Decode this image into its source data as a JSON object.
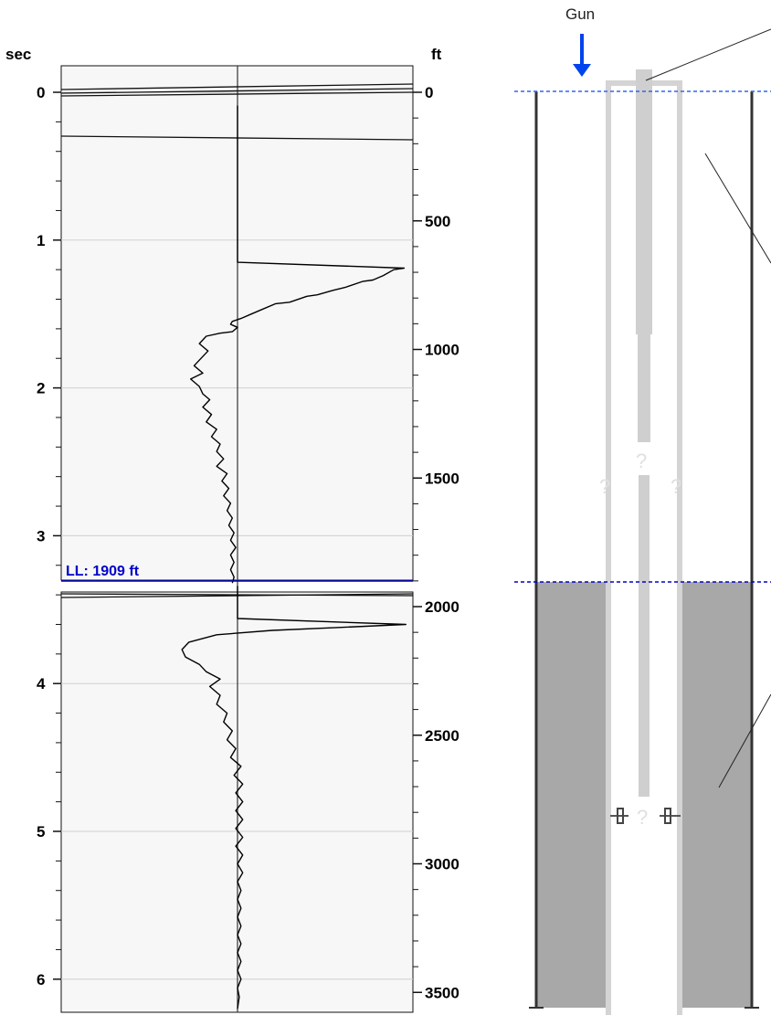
{
  "chart_data": {
    "type": "line",
    "title": "",
    "left_axis": {
      "label": "sec",
      "range": [
        0,
        6.2
      ],
      "ticks": [
        "0",
        "1",
        "2",
        "3",
        "4",
        "5",
        "6"
      ]
    },
    "right_axis": {
      "label": "ft",
      "range": [
        0,
        3600
      ],
      "ticks": [
        "0",
        "500",
        "1000",
        "1500",
        "2000",
        "2500",
        "3000",
        "3500"
      ]
    },
    "grid": true,
    "liquid_level": {
      "label": "LL: 1909 ft",
      "depth_ft": 1909,
      "time_sec": 3.32
    },
    "series": [
      {
        "segment": "upper",
        "points": [
          [
            0.0,
            0.09
          ],
          [
            0.0,
            0.2
          ],
          [
            0.0,
            0.28
          ],
          [
            0.0,
            0.34
          ],
          [
            0.0,
            0.4
          ],
          [
            0.0,
            0.46
          ],
          [
            0.0,
            0.52
          ],
          [
            0.0,
            0.58
          ],
          [
            0.0,
            0.64
          ],
          [
            0.0,
            0.7
          ],
          [
            0.0,
            0.76
          ],
          [
            0.0,
            0.82
          ],
          [
            0.0,
            0.88
          ],
          [
            0.0,
            0.94
          ],
          [
            0.0,
            1.0
          ],
          [
            0.0,
            1.06
          ],
          [
            0.0,
            1.1
          ],
          [
            0.0,
            1.15
          ],
          [
            0.96,
            1.19
          ],
          [
            0.9,
            1.2
          ],
          [
            0.84,
            1.24
          ],
          [
            0.78,
            1.27
          ],
          [
            0.72,
            1.28
          ],
          [
            0.62,
            1.32
          ],
          [
            0.55,
            1.34
          ],
          [
            0.46,
            1.37
          ],
          [
            0.4,
            1.38
          ],
          [
            0.3,
            1.42
          ],
          [
            0.22,
            1.43
          ],
          [
            0.14,
            1.47
          ],
          [
            0.08,
            1.5
          ],
          [
            0.02,
            1.53
          ],
          [
            -0.03,
            1.55
          ],
          [
            -0.04,
            1.57
          ],
          [
            0.0,
            1.59
          ],
          [
            -0.03,
            1.62
          ],
          [
            -0.1,
            1.63
          ],
          [
            -0.18,
            1.65
          ],
          [
            -0.22,
            1.7
          ],
          [
            -0.17,
            1.75
          ],
          [
            -0.21,
            1.8
          ],
          [
            -0.25,
            1.85
          ],
          [
            -0.2,
            1.9
          ],
          [
            -0.27,
            1.94
          ],
          [
            -0.22,
            1.99
          ],
          [
            -0.2,
            2.04
          ],
          [
            -0.16,
            2.08
          ],
          [
            -0.2,
            2.13
          ],
          [
            -0.15,
            2.18
          ],
          [
            -0.18,
            2.23
          ],
          [
            -0.12,
            2.28
          ],
          [
            -0.15,
            2.33
          ],
          [
            -0.1,
            2.38
          ],
          [
            -0.12,
            2.43
          ],
          [
            -0.08,
            2.48
          ],
          [
            -0.12,
            2.53
          ],
          [
            -0.06,
            2.58
          ],
          [
            -0.09,
            2.63
          ],
          [
            -0.05,
            2.68
          ],
          [
            -0.08,
            2.73
          ],
          [
            -0.04,
            2.78
          ],
          [
            -0.06,
            2.83
          ],
          [
            -0.03,
            2.88
          ],
          [
            -0.05,
            2.93
          ],
          [
            -0.02,
            2.98
          ],
          [
            -0.04,
            3.03
          ],
          [
            -0.01,
            3.08
          ],
          [
            -0.04,
            3.13
          ],
          [
            -0.02,
            3.18
          ],
          [
            -0.04,
            3.23
          ],
          [
            -0.02,
            3.28
          ],
          [
            -0.03,
            3.32
          ]
        ]
      },
      {
        "segment": "lower",
        "points": [
          [
            0.0,
            3.34
          ],
          [
            0.0,
            3.4
          ],
          [
            0.0,
            3.46
          ],
          [
            0.0,
            3.52
          ],
          [
            0.0,
            3.56
          ],
          [
            0.97,
            3.6
          ],
          [
            0.6,
            3.62
          ],
          [
            0.2,
            3.64
          ],
          [
            -0.12,
            3.67
          ],
          [
            -0.28,
            3.72
          ],
          [
            -0.32,
            3.77
          ],
          [
            -0.3,
            3.82
          ],
          [
            -0.22,
            3.87
          ],
          [
            -0.18,
            3.92
          ],
          [
            -0.1,
            3.97
          ],
          [
            -0.16,
            4.02
          ],
          [
            -0.1,
            4.08
          ],
          [
            -0.12,
            4.14
          ],
          [
            -0.06,
            4.2
          ],
          [
            -0.08,
            4.26
          ],
          [
            -0.03,
            4.32
          ],
          [
            -0.06,
            4.38
          ],
          [
            -0.01,
            4.44
          ],
          [
            -0.04,
            4.5
          ],
          [
            0.02,
            4.56
          ],
          [
            -0.02,
            4.62
          ],
          [
            0.03,
            4.68
          ],
          [
            -0.01,
            4.74
          ],
          [
            0.03,
            4.8
          ],
          [
            -0.01,
            4.86
          ],
          [
            0.03,
            4.92
          ],
          [
            -0.01,
            4.98
          ],
          [
            0.03,
            5.04
          ],
          [
            -0.01,
            5.1
          ],
          [
            0.03,
            5.16
          ],
          [
            0.0,
            5.22
          ],
          [
            0.03,
            5.28
          ],
          [
            0.0,
            5.34
          ],
          [
            0.02,
            5.4
          ],
          [
            0.0,
            5.46
          ],
          [
            0.02,
            5.52
          ],
          [
            0.0,
            5.58
          ],
          [
            0.02,
            5.64
          ],
          [
            0.0,
            5.7
          ],
          [
            0.02,
            5.76
          ],
          [
            0.0,
            5.82
          ],
          [
            0.02,
            5.88
          ],
          [
            0.0,
            5.94
          ],
          [
            0.02,
            6.0
          ],
          [
            0.0,
            6.06
          ],
          [
            0.01,
            6.12
          ],
          [
            0.0,
            6.2
          ]
        ]
      }
    ]
  },
  "wellbore": {
    "gun_label": "Gun",
    "question_marks": [
      "?",
      "?",
      "?",
      "?"
    ],
    "colors": {
      "gun_arrow": "#0044ee",
      "fluid": "#a8a8a8",
      "casing": "#333333",
      "tubing": "#d4d4d4",
      "level_line": "#0000cc"
    }
  }
}
